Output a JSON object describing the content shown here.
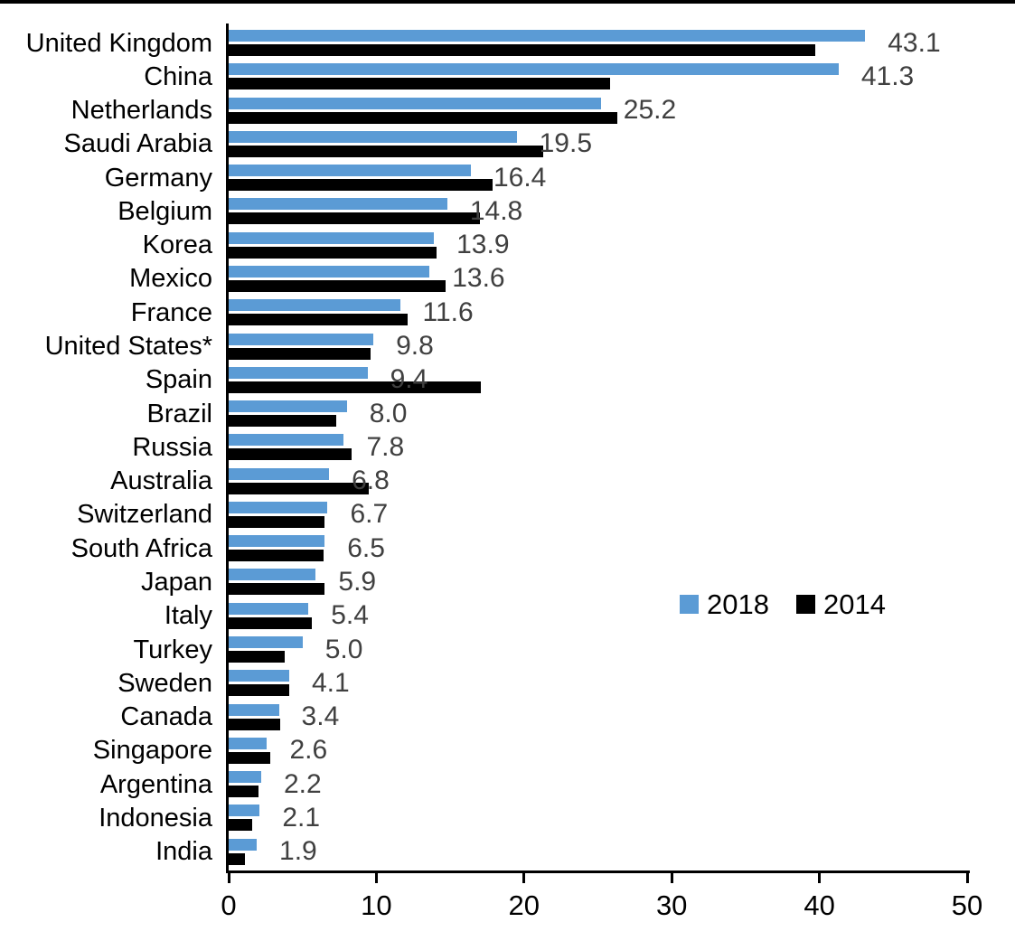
{
  "chart_data": {
    "type": "bar",
    "orientation": "horizontal",
    "title": "",
    "xlabel": "",
    "ylabel": "",
    "xlim": [
      0,
      50
    ],
    "xticks": [
      "0",
      "10",
      "20",
      "30",
      "40",
      "50"
    ],
    "grid": false,
    "legend_position": "middle-right",
    "axis_color": "#000000",
    "data_label_color": "#404040",
    "categories": [
      "United Kingdom",
      "China",
      "Netherlands",
      "Saudi Arabia",
      "Germany",
      "Belgium",
      "Korea",
      "Mexico",
      "France",
      "United States*",
      "Spain",
      "Brazil",
      "Russia",
      "Australia",
      "Switzerland",
      "South Africa",
      "Japan",
      "Italy",
      "Turkey",
      "Sweden",
      "Canada",
      "Singapore",
      "Argentina",
      "Indonesia",
      "India"
    ],
    "series": [
      {
        "name": "2018",
        "color": "#5B9BD5",
        "values": [
          43.1,
          41.3,
          25.2,
          19.5,
          16.4,
          14.8,
          13.9,
          13.6,
          11.6,
          9.8,
          9.4,
          8.0,
          7.8,
          6.8,
          6.7,
          6.5,
          5.9,
          5.4,
          5.0,
          4.1,
          3.4,
          2.6,
          2.2,
          2.1,
          1.9
        ],
        "data_labels": [
          "43.1",
          "41.3",
          "25.2",
          "19.5",
          "16.4",
          "14.8",
          "13.9",
          "13.6",
          "11.6",
          "9.8",
          "9.4",
          "8.0",
          "7.8",
          "6.8",
          "6.7",
          "6.5",
          "5.9",
          "5.4",
          "5.0",
          "4.1",
          "3.4",
          "2.6",
          "2.2",
          "2.1",
          "1.9"
        ]
      },
      {
        "name": "2014",
        "color": "#000000",
        "values": [
          39.7,
          25.8,
          26.3,
          21.3,
          17.9,
          17.0,
          14.1,
          14.7,
          12.1,
          9.6,
          17.1,
          7.3,
          8.3,
          9.5,
          6.5,
          6.4,
          6.5,
          5.6,
          3.8,
          4.1,
          3.5,
          2.8,
          2.0,
          1.6,
          1.1
        ],
        "data_labels": []
      }
    ]
  }
}
